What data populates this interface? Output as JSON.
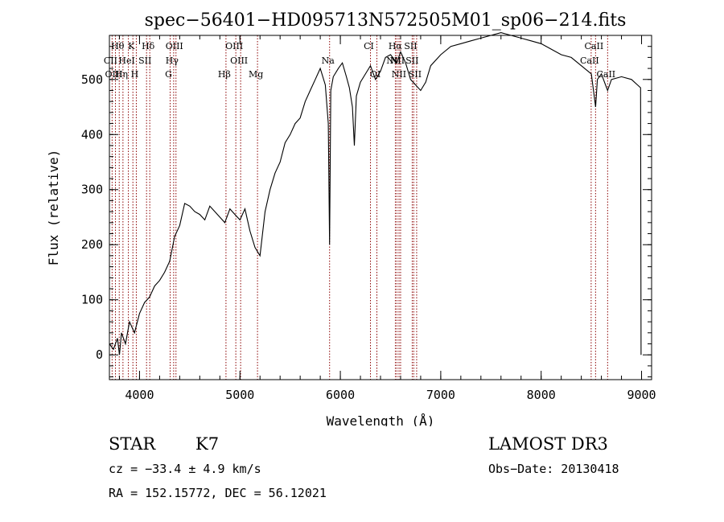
{
  "chart_data": {
    "type": "line",
    "title": "spec−56401−HD095713N572505M01_sp06−214.fits",
    "xlabel": "Wavelength (Å)",
    "ylabel": "Flux (relative)",
    "xlim": [
      3700,
      9100
    ],
    "ylim": [
      -45,
      580
    ],
    "x_ticks": [
      4000,
      5000,
      6000,
      7000,
      8000,
      9000
    ],
    "y_ticks": [
      0,
      100,
      200,
      300,
      400,
      500
    ],
    "series": [
      {
        "name": "flux",
        "x": [
          3700,
          3740,
          3780,
          3800,
          3820,
          3860,
          3900,
          3950,
          4000,
          4050,
          4100,
          4150,
          4200,
          4250,
          4300,
          4350,
          4400,
          4450,
          4500,
          4550,
          4600,
          4650,
          4700,
          4750,
          4800,
          4850,
          4900,
          4950,
          5000,
          5050,
          5100,
          5150,
          5200,
          5250,
          5300,
          5350,
          5400,
          5450,
          5500,
          5550,
          5600,
          5650,
          5700,
          5750,
          5800,
          5850,
          5880,
          5893,
          5905,
          5930,
          5980,
          6020,
          6060,
          6090,
          6120,
          6140,
          6160,
          6200,
          6250,
          6300,
          6350,
          6400,
          6450,
          6500,
          6563,
          6600,
          6650,
          6700,
          6750,
          6800,
          6850,
          6900,
          7000,
          7100,
          7200,
          7300,
          7400,
          7500,
          7600,
          7700,
          7800,
          7900,
          8000,
          8100,
          8200,
          8300,
          8400,
          8500,
          8542,
          8560,
          8600,
          8662,
          8700,
          8800,
          8900,
          8960,
          8990,
          8995
        ],
        "y": [
          20,
          10,
          30,
          0,
          40,
          20,
          60,
          40,
          75,
          95,
          105,
          125,
          135,
          150,
          170,
          215,
          235,
          275,
          270,
          260,
          255,
          245,
          270,
          260,
          250,
          240,
          265,
          255,
          245,
          265,
          225,
          195,
          180,
          260,
          300,
          330,
          350,
          385,
          400,
          420,
          430,
          460,
          480,
          500,
          520,
          490,
          420,
          200,
          480,
          505,
          520,
          530,
          505,
          485,
          450,
          380,
          470,
          495,
          510,
          525,
          500,
          515,
          540,
          545,
          530,
          550,
          530,
          500,
          490,
          480,
          495,
          525,
          545,
          560,
          565,
          570,
          575,
          580,
          585,
          580,
          575,
          570,
          565,
          555,
          545,
          540,
          525,
          510,
          450,
          500,
          510,
          480,
          500,
          505,
          500,
          490,
          485,
          0
        ]
      }
    ],
    "lines": [
      {
        "label": "Hθ",
        "x": 3798,
        "row": 0
      },
      {
        "label": "K",
        "x": 3934,
        "row": 0
      },
      {
        "label": "Hδ",
        "x": 4102,
        "row": 0
      },
      {
        "label": "OIII",
        "x": 4363,
        "row": 0
      },
      {
        "label": "OIII",
        "x": 4959,
        "row": 0
      },
      {
        "label": "CI",
        "x": 6300,
        "row": 0
      },
      {
        "label": "Hα",
        "x": 6563,
        "row": 0
      },
      {
        "label": "SII",
        "x": 6716,
        "row": 0
      },
      {
        "label": "CaII",
        "x": 8542,
        "row": 0
      },
      {
        "label": "CII",
        "x": 3727,
        "row": 1
      },
      {
        "label": "HeI",
        "x": 3889,
        "row": 1
      },
      {
        "label": "SII",
        "x": 4070,
        "row": 1
      },
      {
        "label": "Hγ",
        "x": 4340,
        "row": 1
      },
      {
        "label": "OIII",
        "x": 5007,
        "row": 1
      },
      {
        "label": "Na",
        "x": 5893,
        "row": 1
      },
      {
        "label": "NII",
        "x": 6548,
        "row": 1
      },
      {
        "label": "NII",
        "x": 6584,
        "row": 1
      },
      {
        "label": "SII",
        "x": 6731,
        "row": 1
      },
      {
        "label": "CaII",
        "x": 8498,
        "row": 1
      },
      {
        "label": "OIII",
        "x": 3760,
        "row": 2
      },
      {
        "label": "Hη",
        "x": 3835,
        "row": 2
      },
      {
        "label": "H",
        "x": 3968,
        "row": 2
      },
      {
        "label": "G",
        "x": 4305,
        "row": 2
      },
      {
        "label": "Hβ",
        "x": 4861,
        "row": 2
      },
      {
        "label": "Mg",
        "x": 5175,
        "row": 2
      },
      {
        "label": "OI",
        "x": 6364,
        "row": 2
      },
      {
        "label": "NII",
        "x": 6600,
        "row": 2
      },
      {
        "label": "SII",
        "x": 6760,
        "row": 2
      },
      {
        "label": "CaII",
        "x": 8662,
        "row": 2
      }
    ]
  },
  "info": {
    "object_type": "STAR",
    "subclass": "K7",
    "survey": "LAMOST DR3",
    "redshift": "cz = −33.4 ± 4.9 km/s",
    "obs_date": "Obs−Date: 20130418",
    "coords": "RA = 152.15772, DEC =  56.12021"
  },
  "colors": {
    "line_marker": "#8b0000",
    "spectrum": "#000000",
    "axis": "#000000"
  }
}
